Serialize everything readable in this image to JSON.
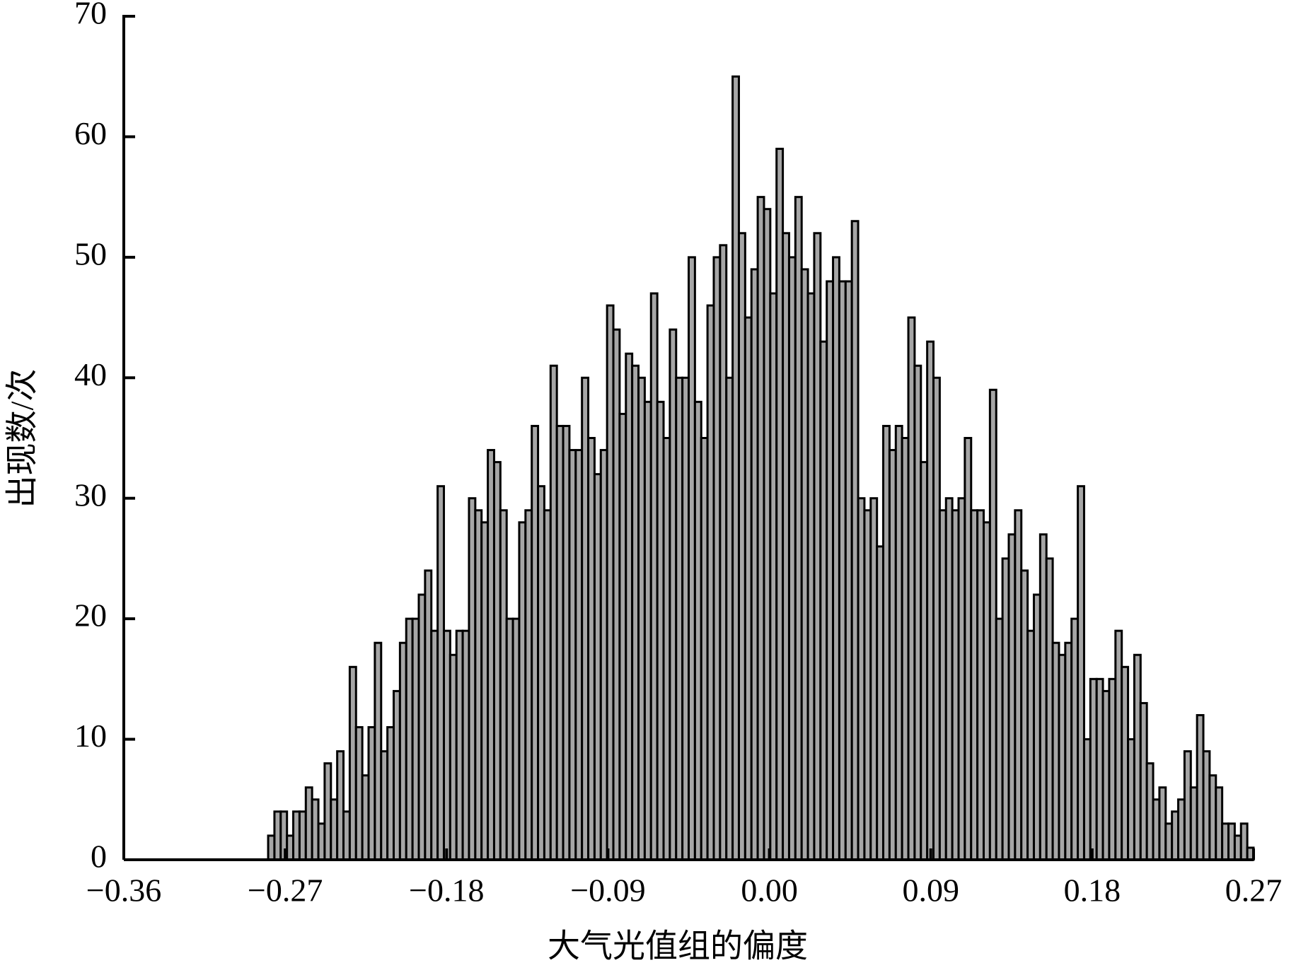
{
  "chart_data": {
    "type": "histogram",
    "x_label": "大气光值组的偏度",
    "y_label": "出现数/次",
    "bins": [
      -0.2795,
      -0.276,
      -0.2725,
      -0.269,
      -0.2655,
      -0.262,
      -0.2585,
      -0.255,
      -0.2515,
      -0.248,
      -0.2445,
      -0.241,
      -0.2375,
      -0.234,
      -0.2305,
      -0.227,
      -0.2235,
      -0.22,
      -0.2165,
      -0.213,
      -0.2095,
      -0.206,
      -0.2025,
      -0.199,
      -0.1955,
      -0.192,
      -0.1885,
      -0.185,
      -0.1815,
      -0.178,
      -0.1745,
      -0.171,
      -0.1675,
      -0.164,
      -0.1605,
      -0.157,
      -0.1535,
      -0.15,
      -0.1465,
      -0.143,
      -0.1395,
      -0.136,
      -0.1325,
      -0.129,
      -0.1255,
      -0.122,
      -0.1185,
      -0.115,
      -0.1115,
      -0.108,
      -0.1045,
      -0.101,
      -0.0975,
      -0.094,
      -0.0905,
      -0.087,
      -0.0835,
      -0.08,
      -0.0765,
      -0.073,
      -0.0695,
      -0.066,
      -0.0625,
      -0.059,
      -0.0555,
      -0.052,
      -0.0485,
      -0.045,
      -0.0415,
      -0.038,
      -0.0345,
      -0.031,
      -0.0275,
      -0.024,
      -0.0205,
      -0.017,
      -0.0135,
      -0.01,
      -0.0065,
      -0.003,
      0.0005,
      0.004,
      0.0075,
      0.011,
      0.0145,
      0.018,
      0.0215,
      0.025,
      0.0285,
      0.032,
      0.0355,
      0.039,
      0.0425,
      0.046,
      0.0495,
      0.053,
      0.0565,
      0.06,
      0.0635,
      0.067,
      0.0705,
      0.074,
      0.0775,
      0.081,
      0.0845,
      0.088,
      0.0915,
      0.095,
      0.0985,
      0.102,
      0.1055,
      0.109,
      0.1125,
      0.116,
      0.1195,
      0.123,
      0.1265,
      0.13,
      0.1335,
      0.137,
      0.1405,
      0.144,
      0.1475,
      0.151,
      0.1545,
      0.158,
      0.1615,
      0.165,
      0.1685,
      0.172,
      0.1755,
      0.179,
      0.1825,
      0.186,
      0.1895,
      0.193,
      0.1965,
      0.2,
      0.2035,
      0.207,
      0.2105,
      0.214,
      0.2175,
      0.221,
      0.2245,
      0.228,
      0.2315,
      0.235,
      0.2385,
      0.242,
      0.2455,
      0.249,
      0.2525,
      0.256,
      0.2595,
      0.263,
      0.2665,
      0.27
    ],
    "values": [
      2,
      4,
      4,
      2,
      4,
      4,
      6,
      5,
      3,
      8,
      5,
      9,
      4,
      16,
      11,
      7,
      11,
      18,
      9,
      11,
      14,
      18,
      20,
      20,
      22,
      24,
      19,
      31,
      19,
      17,
      19,
      19,
      30,
      29,
      28,
      34,
      33,
      29,
      20,
      20,
      28,
      29,
      36,
      31,
      29,
      41,
      36,
      36,
      34,
      34,
      40,
      35,
      32,
      34,
      46,
      44,
      37,
      42,
      41,
      40,
      38,
      47,
      38,
      35,
      44,
      40,
      40,
      50,
      38,
      35,
      46,
      50,
      51,
      40,
      65,
      52,
      45,
      49,
      55,
      54,
      47,
      59,
      52,
      50,
      55,
      49,
      47,
      52,
      43,
      48,
      50,
      48,
      48,
      53,
      30,
      29,
      30,
      26,
      36,
      34,
      36,
      35,
      45,
      41,
      33,
      43,
      40,
      29,
      30,
      29,
      30,
      35,
      29,
      29,
      28,
      39,
      20,
      25,
      27,
      29,
      24,
      19,
      22,
      27,
      25,
      18,
      17,
      18,
      20,
      31,
      10,
      15,
      15,
      14,
      15,
      19,
      16,
      10,
      17,
      13,
      8,
      5,
      6,
      3,
      4,
      5,
      9,
      6,
      12,
      9,
      7,
      6,
      3,
      3,
      2,
      3,
      1
    ],
    "color": "#a6a6a6",
    "xlim": [
      -0.36,
      0.27
    ],
    "xticks": [
      {
        "value": -0.36,
        "label": "−0.36"
      },
      {
        "value": -0.27,
        "label": "−0.27"
      },
      {
        "value": -0.18,
        "label": "−0.18"
      },
      {
        "value": -0.09,
        "label": "−0.09"
      },
      {
        "value": 0,
        "label": "0.00"
      },
      0.09,
      0.18,
      0.27
    ],
    "ylim": [
      0,
      70
    ],
    "yticks": [
      0,
      10,
      20,
      30,
      40,
      50,
      60,
      70
    ],
    "grid": false
  }
}
